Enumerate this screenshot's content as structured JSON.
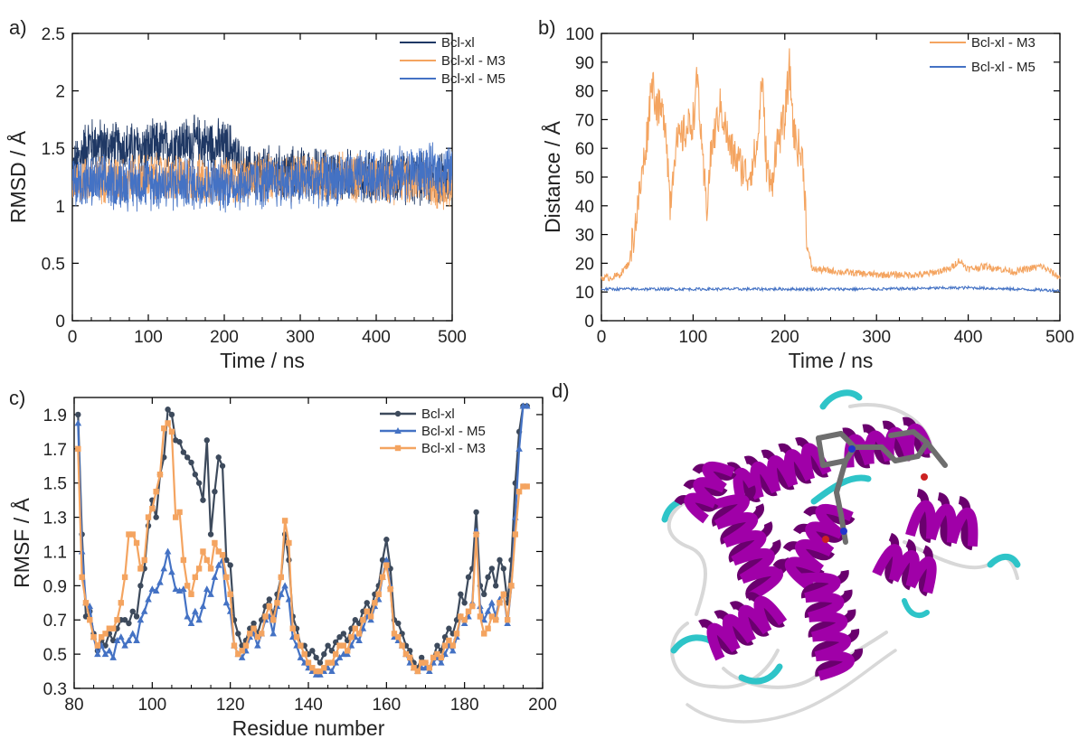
{
  "chart_data": [
    {
      "panel": "a)",
      "type": "line",
      "xlabel": "Time / ns",
      "ylabel": "RMSD / Å",
      "xlim": [
        0,
        500
      ],
      "ylim": [
        0,
        2.5
      ],
      "xticks": [
        "0",
        "100",
        "200",
        "300",
        "400",
        "500"
      ],
      "yticks": [
        "0",
        "0.5",
        "1",
        "1.5",
        "2",
        "2.5"
      ],
      "legend_position": "top-right",
      "series": [
        {
          "name": "Bcl-xl",
          "color": "#1f3864",
          "mean": [
            [
              0,
              1.3
            ],
            [
              20,
              1.55
            ],
            [
              60,
              1.5
            ],
            [
              100,
              1.5
            ],
            [
              140,
              1.55
            ],
            [
              170,
              1.55
            ],
            [
              210,
              1.5
            ],
            [
              225,
              1.3
            ],
            [
              300,
              1.28
            ],
            [
              400,
              1.25
            ],
            [
              500,
              1.22
            ]
          ],
          "amplitude": 0.22
        },
        {
          "name": "Bcl-xl - M3",
          "color": "#f4a460",
          "mean": [
            [
              0,
              1.22
            ],
            [
              100,
              1.25
            ],
            [
              200,
              1.22
            ],
            [
              300,
              1.25
            ],
            [
              400,
              1.25
            ],
            [
              500,
              1.18
            ]
          ],
          "amplitude": 0.2
        },
        {
          "name": "Bcl-xl - M5",
          "color": "#4472c4",
          "mean": [
            [
              0,
              1.2
            ],
            [
              100,
              1.2
            ],
            [
              200,
              1.18
            ],
            [
              300,
              1.22
            ],
            [
              400,
              1.25
            ],
            [
              450,
              1.3
            ],
            [
              500,
              1.3
            ]
          ],
          "amplitude": 0.22
        }
      ]
    },
    {
      "panel": "b)",
      "type": "line",
      "xlabel": "Time / ns",
      "ylabel": "Distance / Å",
      "xlim": [
        0,
        500
      ],
      "ylim": [
        0,
        100
      ],
      "xticks": [
        "0",
        "100",
        "200",
        "300",
        "400",
        "500"
      ],
      "yticks": [
        "0",
        "10",
        "20",
        "30",
        "40",
        "50",
        "60",
        "70",
        "80",
        "90",
        "100"
      ],
      "legend_position": "top-right",
      "series": [
        {
          "name": "Bcl-xl - M3",
          "color": "#f4a460",
          "points": [
            [
              0,
              15
            ],
            [
              10,
              15
            ],
            [
              20,
              16
            ],
            [
              30,
              20
            ],
            [
              40,
              40
            ],
            [
              50,
              65
            ],
            [
              55,
              85
            ],
            [
              60,
              75
            ],
            [
              70,
              70
            ],
            [
              75,
              40
            ],
            [
              80,
              60
            ],
            [
              90,
              65
            ],
            [
              100,
              70
            ],
            [
              105,
              85
            ],
            [
              110,
              55
            ],
            [
              115,
              40
            ],
            [
              120,
              60
            ],
            [
              130,
              75
            ],
            [
              140,
              60
            ],
            [
              150,
              55
            ],
            [
              160,
              50
            ],
            [
              170,
              60
            ],
            [
              175,
              85
            ],
            [
              180,
              55
            ],
            [
              185,
              45
            ],
            [
              190,
              60
            ],
            [
              200,
              70
            ],
            [
              205,
              88
            ],
            [
              210,
              65
            ],
            [
              215,
              60
            ],
            [
              220,
              55
            ],
            [
              225,
              25
            ],
            [
              230,
              18
            ],
            [
              260,
              17
            ],
            [
              300,
              16
            ],
            [
              350,
              16
            ],
            [
              380,
              18
            ],
            [
              390,
              21
            ],
            [
              400,
              18
            ],
            [
              420,
              19
            ],
            [
              450,
              17
            ],
            [
              480,
              19
            ],
            [
              500,
              15
            ]
          ]
        },
        {
          "name": "Bcl-xl - M5",
          "color": "#4472c4",
          "points": [
            [
              0,
              11
            ],
            [
              100,
              11
            ],
            [
              200,
              11
            ],
            [
              300,
              11
            ],
            [
              400,
              11.5
            ],
            [
              500,
              10.5
            ]
          ]
        }
      ]
    },
    {
      "panel": "c)",
      "type": "line",
      "xlabel": "Residue number",
      "ylabel": "RMSF / Å",
      "xlim": [
        80,
        200
      ],
      "ylim": [
        0.3,
        2.0
      ],
      "xticks": [
        "80",
        "100",
        "120",
        "140",
        "160",
        "180",
        "200"
      ],
      "yticks": [
        "0.3",
        "0.5",
        "0.7",
        "0.9",
        "1.1",
        "1.3",
        "1.5",
        "1.7",
        "1.9"
      ],
      "legend_position": "top-right",
      "x": [
        81,
        82,
        83,
        84,
        85,
        86,
        87,
        88,
        89,
        90,
        91,
        92,
        93,
        94,
        95,
        96,
        97,
        98,
        99,
        100,
        101,
        102,
        103,
        104,
        105,
        106,
        107,
        108,
        109,
        110,
        111,
        112,
        113,
        114,
        115,
        116,
        117,
        118,
        119,
        120,
        121,
        122,
        123,
        124,
        125,
        126,
        127,
        128,
        129,
        130,
        131,
        132,
        133,
        134,
        135,
        136,
        137,
        138,
        139,
        140,
        141,
        142,
        143,
        144,
        145,
        146,
        147,
        148,
        149,
        150,
        151,
        152,
        153,
        154,
        155,
        156,
        157,
        158,
        159,
        160,
        161,
        162,
        163,
        164,
        165,
        166,
        167,
        168,
        169,
        170,
        171,
        172,
        173,
        174,
        175,
        176,
        177,
        178,
        179,
        180,
        181,
        182,
        183,
        184,
        185,
        186,
        187,
        188,
        189,
        190,
        191,
        192,
        193,
        194,
        195,
        196
      ],
      "series": [
        {
          "name": "Bcl-xl",
          "color": "#3d4a5c",
          "marker": "circle",
          "values": [
            1.9,
            1.2,
            0.72,
            0.75,
            0.62,
            0.52,
            0.58,
            0.55,
            0.62,
            0.58,
            0.65,
            0.7,
            0.7,
            0.68,
            0.75,
            0.72,
            0.9,
            1.0,
            1.25,
            1.4,
            1.3,
            1.55,
            1.65,
            1.93,
            1.9,
            1.75,
            1.74,
            1.68,
            1.65,
            1.62,
            1.55,
            1.5,
            1.4,
            1.75,
            1.2,
            1.45,
            1.65,
            1.6,
            1.05,
            1.02,
            0.7,
            0.62,
            0.55,
            0.58,
            0.65,
            0.68,
            0.62,
            0.7,
            0.78,
            0.82,
            0.72,
            0.85,
            0.95,
            1.2,
            1.05,
            0.72,
            0.65,
            0.55,
            0.55,
            0.5,
            0.52,
            0.48,
            0.45,
            0.5,
            0.55,
            0.52,
            0.57,
            0.6,
            0.62,
            0.58,
            0.65,
            0.7,
            0.68,
            0.75,
            0.8,
            0.75,
            0.85,
            0.9,
            1.05,
            1.17,
            1.0,
            0.7,
            0.68,
            0.62,
            0.55,
            0.52,
            0.45,
            0.42,
            0.48,
            0.45,
            0.42,
            0.48,
            0.55,
            0.52,
            0.6,
            0.65,
            0.62,
            0.7,
            0.85,
            0.8,
            0.95,
            1.0,
            1.33,
            0.9,
            0.85,
            0.95,
            1.0,
            0.9,
            1.05,
            1.0,
            0.8,
            1.05,
            1.5,
            1.8,
            1.95,
            1.95
          ]
        },
        {
          "name": "Bcl-xl - M5",
          "color": "#4472c4",
          "marker": "triangle",
          "values": [
            1.85,
            1.1,
            0.8,
            0.78,
            0.6,
            0.5,
            0.55,
            0.5,
            0.52,
            0.48,
            0.58,
            0.6,
            0.55,
            0.58,
            0.62,
            0.58,
            0.7,
            0.75,
            0.82,
            0.88,
            0.87,
            0.92,
            1.0,
            1.1,
            0.98,
            0.88,
            0.87,
            0.88,
            0.72,
            0.68,
            0.75,
            0.7,
            0.78,
            0.88,
            0.85,
            0.95,
            1.02,
            1.05,
            0.8,
            0.75,
            0.55,
            0.5,
            0.48,
            0.52,
            0.6,
            0.62,
            0.55,
            0.62,
            0.7,
            0.72,
            0.62,
            0.78,
            0.85,
            0.9,
            0.82,
            0.6,
            0.55,
            0.48,
            0.45,
            0.42,
            0.4,
            0.38,
            0.38,
            0.4,
            0.42,
            0.4,
            0.45,
            0.48,
            0.5,
            0.5,
            0.55,
            0.6,
            0.58,
            0.65,
            0.72,
            0.7,
            0.78,
            0.82,
            0.95,
            1.05,
            0.9,
            0.6,
            0.58,
            0.55,
            0.5,
            0.45,
            0.42,
            0.4,
            0.42,
            0.42,
            0.4,
            0.45,
            0.48,
            0.45,
            0.5,
            0.55,
            0.52,
            0.6,
            0.72,
            0.68,
            0.72,
            0.8,
            1.22,
            0.78,
            0.7,
            0.75,
            0.8,
            0.72,
            0.82,
            0.85,
            0.68,
            0.9,
            1.3,
            1.7,
            1.95,
            1.95
          ]
        },
        {
          "name": "Bcl-xl - M3",
          "color": "#f4a460",
          "marker": "square",
          "values": [
            1.7,
            0.95,
            0.8,
            0.7,
            0.6,
            0.55,
            0.6,
            0.62,
            0.65,
            0.65,
            0.7,
            0.8,
            0.95,
            1.2,
            1.2,
            1.15,
            1.0,
            1.05,
            1.3,
            1.35,
            1.45,
            1.55,
            1.82,
            1.85,
            1.8,
            1.3,
            1.33,
            1.05,
            0.9,
            0.85,
            0.95,
            1.0,
            1.1,
            1.05,
            1.0,
            1.15,
            1.1,
            1.08,
            0.95,
            0.85,
            0.55,
            0.5,
            0.52,
            0.55,
            0.62,
            0.65,
            0.6,
            0.62,
            0.72,
            0.78,
            0.7,
            0.8,
            0.95,
            1.28,
            1.15,
            0.65,
            0.6,
            0.55,
            0.5,
            0.45,
            0.42,
            0.4,
            0.4,
            0.42,
            0.45,
            0.45,
            0.5,
            0.55,
            0.55,
            0.52,
            0.6,
            0.65,
            0.62,
            0.7,
            0.75,
            0.72,
            0.8,
            0.85,
            0.95,
            1.02,
            0.88,
            0.62,
            0.6,
            0.55,
            0.5,
            0.48,
            0.42,
            0.4,
            0.45,
            0.45,
            0.42,
            0.48,
            0.5,
            0.48,
            0.55,
            0.58,
            0.55,
            0.62,
            0.72,
            0.7,
            0.75,
            0.78,
            1.2,
            0.72,
            0.62,
            0.65,
            0.72,
            0.7,
            0.8,
            0.85,
            0.7,
            0.9,
            1.2,
            1.45,
            1.48,
            1.48
          ]
        }
      ]
    }
  ],
  "panel_d": {
    "label": "d)",
    "colors": {
      "helix": "#a000a8",
      "helix_dark": "#6a006e",
      "turn": "#2ec4c8",
      "coil": "#d8d8d8",
      "ligand": "#6e6e6e"
    }
  }
}
